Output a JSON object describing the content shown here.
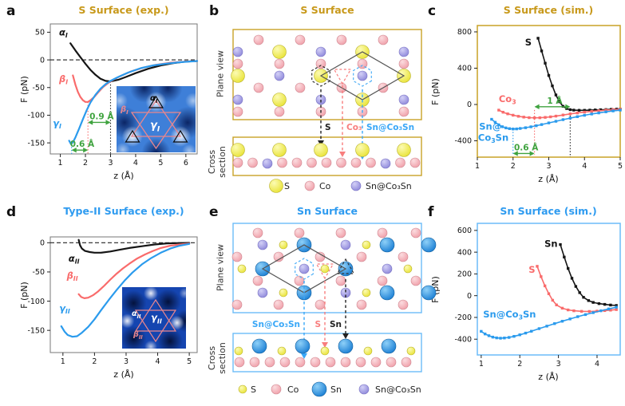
{
  "panels": {
    "a": {
      "letter": "a",
      "title": "S Surface (exp.)"
    },
    "b": {
      "letter": "b",
      "title": "S Surface",
      "plane_label": "Plane view",
      "cross_label": "Cross section",
      "callouts": [
        {
          "text": "S",
          "color": "#222222"
        },
        {
          "text": "Co₃",
          "color": "#F87E7E"
        },
        {
          "text": "Sn@Co₃Sn",
          "color": "#39A7F7"
        }
      ],
      "legend": [
        {
          "text": "S",
          "type": "S"
        },
        {
          "text": "Co",
          "type": "Co"
        },
        {
          "text": "Sn@Co₃Sn",
          "type": "V"
        }
      ]
    },
    "c": {
      "letter": "c",
      "title": "S Surface (sim.)"
    },
    "d": {
      "letter": "d",
      "title": "Type-II Surface (exp.)"
    },
    "e": {
      "letter": "e",
      "title": "Sn Surface",
      "plane_label": "Plane view",
      "cross_label": "Cross section",
      "callouts": [
        {
          "text": "Sn@Co₃Sn",
          "color": "#39A7F7"
        },
        {
          "text": "S",
          "color": "#F87E7E"
        },
        {
          "text": "Sn",
          "color": "#222222"
        }
      ],
      "legend": [
        {
          "text": "S",
          "type": "S"
        },
        {
          "text": "Co",
          "type": "Co"
        },
        {
          "text": "Sn",
          "type": "B"
        },
        {
          "text": "Sn@Co₃Sn",
          "type": "V"
        }
      ]
    },
    "f": {
      "letter": "f",
      "title": "Sn Surface (sim.)"
    }
  },
  "insets": {
    "a": {
      "alpha": "α_{I}",
      "beta": "β_{I}",
      "gamma": "γ_{I}"
    },
    "d": {
      "alpha": "α_{II}",
      "beta": "β_{II}",
      "gamma": "γ_{II}"
    }
  },
  "colors": {
    "gold": "#C8991B",
    "blue_title": "#2E9BF0",
    "green": "#3FA33F",
    "curve_black": "#151515",
    "curve_red": "#F96B6B",
    "curve_blue": "#2B9BED",
    "atom_s": "#E9E337",
    "atom_co": "#F0A0AA",
    "atom_v": "#8F89DB",
    "atom_sn": "#1B7FD4"
  },
  "chart_data": [
    {
      "id": "a",
      "type": "line",
      "title": "S Surface (exp.)",
      "xlabel": "z (Å)",
      "ylabel": "F (pN)",
      "xlim": [
        0.6,
        6.45
      ],
      "ylim": [
        -170,
        65
      ],
      "xticks": [
        1,
        2,
        3,
        4,
        5,
        6
      ],
      "yticks": [
        50,
        0,
        -50,
        -100,
        -150
      ],
      "zero_line": true,
      "frame_color": "#777777",
      "frame_width": 1,
      "series": [
        {
          "name": "alpha_I",
          "label": "α_{I}",
          "label_x": 0.95,
          "label_y": 44,
          "label_anchor": "start",
          "color": "#151515",
          "lw": 2.2,
          "marker": false,
          "x": [
            1.4,
            1.6,
            1.8,
            2.0,
            2.2,
            2.4,
            2.6,
            2.8,
            3.0,
            3.3,
            3.6,
            4.0,
            4.5,
            5.0,
            5.5,
            6.0,
            6.45
          ],
          "y": [
            30,
            17,
            5,
            -7,
            -18,
            -27,
            -34,
            -38,
            -39,
            -36,
            -31,
            -24,
            -16,
            -10,
            -6,
            -3,
            -2
          ]
        },
        {
          "name": "beta_I",
          "label": "β_{I}",
          "label_x": 0.95,
          "label_y": -40,
          "label_anchor": "start",
          "color": "#F96B6B",
          "lw": 2.2,
          "marker": false,
          "x": [
            1.5,
            1.6,
            1.7,
            1.8,
            1.9,
            2.0,
            2.1,
            2.2,
            2.35,
            2.5,
            2.7,
            2.9,
            3.1,
            3.4,
            3.8,
            4.3,
            4.8,
            5.4,
            6.0,
            6.45
          ],
          "y": [
            -28,
            -45,
            -58,
            -67,
            -73,
            -76,
            -76,
            -73,
            -67,
            -59,
            -49,
            -42,
            -36,
            -29,
            -21,
            -14,
            -9,
            -5,
            -3,
            -2
          ]
        },
        {
          "name": "gamma_I",
          "label": "γ_{I}",
          "label_x": 0.7,
          "label_y": -120,
          "label_anchor": "start",
          "color": "#2B9BED",
          "lw": 2.2,
          "marker": false,
          "x": [
            1.35,
            1.42,
            1.5,
            1.6,
            1.75,
            1.9,
            2.05,
            2.2,
            2.4,
            2.6,
            2.8,
            3.0,
            3.3,
            3.7,
            4.2,
            4.7,
            5.2,
            5.8,
            6.45
          ],
          "y": [
            -146,
            -152,
            -149,
            -140,
            -124,
            -107,
            -91,
            -77,
            -63,
            -52,
            -44,
            -38,
            -31,
            -23,
            -15,
            -10,
            -7,
            -4,
            -2
          ]
        }
      ],
      "vlines": [
        {
          "x": 1.45,
          "y1": -152,
          "y2": -170,
          "color": "#2B9BED"
        },
        {
          "x": 2.1,
          "y1": -76,
          "y2": -170,
          "color": "#F96B6B"
        },
        {
          "x": 3.0,
          "y1": -39,
          "y2": -170,
          "color": "#222222"
        }
      ],
      "arrows": [
        {
          "x1": 2.1,
          "x2": 3.0,
          "y": -113,
          "label": "0.9 Å"
        },
        {
          "x1": 1.45,
          "x2": 2.1,
          "y": -163,
          "label": "0.6 Å"
        }
      ]
    },
    {
      "id": "c",
      "type": "line",
      "title": "S Surface (sim.)",
      "xlabel": "z (Å)",
      "ylabel": "F (pN)",
      "xlim": [
        1,
        5
      ],
      "ylim": [
        -580,
        870
      ],
      "xticks": [
        1,
        2,
        3,
        4,
        5
      ],
      "yticks": [
        800,
        400,
        0,
        -400
      ],
      "zero_line": false,
      "frame_color": "#C9A227",
      "frame_width": 1.5,
      "series": [
        {
          "name": "S",
          "label": "S",
          "label_x": 2.52,
          "label_y": 650,
          "label_anchor": "end",
          "color": "#151515",
          "lw": 1.6,
          "marker": true,
          "x": [
            2.7,
            2.8,
            2.9,
            3.0,
            3.1,
            3.2,
            3.3,
            3.4,
            3.5,
            3.6,
            3.7,
            3.85,
            4.0,
            4.15,
            4.3,
            4.45,
            4.6,
            4.75,
            4.9,
            5.0
          ],
          "y": [
            730,
            590,
            455,
            320,
            205,
            105,
            30,
            -20,
            -45,
            -57,
            -62,
            -64,
            -64,
            -62,
            -60,
            -58,
            -56,
            -53,
            -51,
            -50
          ]
        },
        {
          "name": "Co3",
          "label": "Co_{3}",
          "label_x": 1.6,
          "label_y": 25,
          "label_anchor": "start",
          "color": "#F96B6B",
          "lw": 1.6,
          "marker": true,
          "x": [
            1.6,
            1.72,
            1.85,
            2.0,
            2.15,
            2.3,
            2.45,
            2.6,
            2.75,
            2.9,
            3.05,
            3.2,
            3.4,
            3.6,
            3.8,
            4.0,
            4.2,
            4.4,
            4.6,
            4.8,
            5.0
          ],
          "y": [
            -62,
            -85,
            -103,
            -118,
            -130,
            -139,
            -145,
            -147,
            -146,
            -142,
            -136,
            -128,
            -116,
            -104,
            -93,
            -84,
            -76,
            -69,
            -62,
            -56,
            -51
          ]
        },
        {
          "name": "Sn_at_Co3Sn",
          "label": "Sn@",
          "label2": "Co_{3}Sn",
          "label_x": 1.05,
          "label_y": -275,
          "label2_x": 1.02,
          "label2_y": -400,
          "label_anchor": "start",
          "color": "#2B9BED",
          "lw": 1.6,
          "marker": true,
          "x": [
            1.4,
            1.5,
            1.6,
            1.7,
            1.8,
            1.9,
            2.0,
            2.1,
            2.2,
            2.35,
            2.5,
            2.65,
            2.8,
            3.0,
            3.2,
            3.4,
            3.6,
            3.8,
            4.0,
            4.2,
            4.4,
            4.6,
            4.8,
            5.0
          ],
          "y": [
            -163,
            -196,
            -224,
            -245,
            -258,
            -266,
            -270,
            -269,
            -264,
            -256,
            -246,
            -234,
            -221,
            -203,
            -185,
            -167,
            -150,
            -134,
            -119,
            -105,
            -93,
            -81,
            -71,
            -62
          ]
        }
      ],
      "vlines": [
        {
          "x": 2.0,
          "y1": -270,
          "y2": -555,
          "color": "#2B9BED"
        },
        {
          "x": 2.6,
          "y1": -60,
          "y2": -555,
          "color": "#F96B6B"
        },
        {
          "x": 3.6,
          "y1": -57,
          "y2": -580,
          "color": "#222222"
        }
      ],
      "arrows": [
        {
          "x1": 2.6,
          "x2": 3.6,
          "y": -25,
          "label": "1 Å"
        },
        {
          "x1": 2.0,
          "x2": 2.6,
          "y": -540,
          "label": "0.6 Å"
        }
      ]
    },
    {
      "id": "d",
      "type": "line",
      "title": "Type-II Surface (exp.)",
      "xlabel": "z (Å)",
      "ylabel": "F (pN)",
      "xlim": [
        0.6,
        5.25
      ],
      "ylim": [
        -188,
        10
      ],
      "xticks": [
        1,
        2,
        3,
        4,
        5
      ],
      "yticks": [
        0,
        -50,
        -100,
        -150
      ],
      "zero_line": true,
      "frame_color": "#777777",
      "frame_width": 1,
      "series": [
        {
          "name": "alpha_II",
          "label": "α_{II}",
          "label_x": 1.35,
          "label_y": -32,
          "label_anchor": "middle",
          "color": "#151515",
          "lw": 2.2,
          "marker": false,
          "x": [
            1.5,
            1.54,
            1.6,
            1.7,
            1.85,
            2.0,
            2.2,
            2.5,
            2.8,
            3.1,
            3.5,
            3.9,
            4.3,
            4.7,
            5.0
          ],
          "y": [
            5,
            -4,
            -10,
            -14,
            -16,
            -17,
            -17,
            -15,
            -12,
            -9,
            -6,
            -3,
            -1,
            -0.5,
            -0.3
          ]
        },
        {
          "name": "beta_II",
          "label": "β_{II}",
          "label_x": 1.12,
          "label_y": -62,
          "label_anchor": "start",
          "color": "#F96B6B",
          "lw": 2.2,
          "marker": false,
          "x": [
            1.5,
            1.58,
            1.68,
            1.8,
            1.95,
            2.1,
            2.3,
            2.5,
            2.7,
            2.9,
            3.1,
            3.35,
            3.6,
            3.85,
            4.1,
            4.4,
            4.7,
            5.0
          ],
          "y": [
            -88,
            -93,
            -95,
            -94,
            -90,
            -84,
            -74,
            -63,
            -53,
            -44,
            -36,
            -27,
            -20,
            -14,
            -9,
            -5,
            -3,
            -1.5
          ]
        },
        {
          "name": "gamma_II",
          "label": "γ_{II}",
          "label_x": 0.88,
          "label_y": -118,
          "label_anchor": "start",
          "color": "#2B9BED",
          "lw": 2.2,
          "marker": false,
          "x": [
            0.95,
            1.05,
            1.15,
            1.3,
            1.45,
            1.6,
            1.8,
            2.0,
            2.2,
            2.45,
            2.7,
            2.95,
            3.2,
            3.5,
            3.8,
            4.1,
            4.4,
            4.7,
            5.0
          ],
          "y": [
            -143,
            -152,
            -158,
            -161,
            -160,
            -154,
            -144,
            -131,
            -116,
            -98,
            -81,
            -65,
            -51,
            -37,
            -26,
            -17,
            -10,
            -5,
            -2
          ]
        }
      ],
      "vlines": [],
      "arrows": []
    },
    {
      "id": "f",
      "type": "line",
      "title": "Sn Surface (sim.)",
      "xlabel": "z (Å)",
      "ylabel": "F (pN)",
      "xlim": [
        0.9,
        4.6
      ],
      "ylim": [
        -545,
        665
      ],
      "xticks": [
        1,
        2,
        3,
        4
      ],
      "yticks": [
        600,
        400,
        200,
        0,
        -200,
        -400
      ],
      "zero_line": false,
      "frame_color": "#6BBCF8",
      "frame_width": 1.5,
      "series": [
        {
          "name": "Sn",
          "label": "Sn",
          "label_x": 2.98,
          "label_y": 450,
          "label_anchor": "end",
          "color": "#151515",
          "lw": 1.6,
          "marker": true,
          "x": [
            3.05,
            3.15,
            3.25,
            3.35,
            3.45,
            3.55,
            3.65,
            3.78,
            3.9,
            4.05,
            4.2,
            4.35,
            4.5
          ],
          "y": [
            470,
            355,
            250,
            160,
            85,
            28,
            -15,
            -45,
            -62,
            -73,
            -80,
            -86,
            -90
          ]
        },
        {
          "name": "S",
          "label": "S",
          "label_x": 2.4,
          "label_y": 210,
          "label_anchor": "end",
          "color": "#F96B6B",
          "lw": 1.6,
          "marker": true,
          "x": [
            2.45,
            2.55,
            2.65,
            2.75,
            2.85,
            2.95,
            3.1,
            3.25,
            3.4,
            3.6,
            3.8,
            4.0,
            4.2,
            4.35,
            4.5
          ],
          "y": [
            270,
            175,
            90,
            18,
            -42,
            -85,
            -115,
            -131,
            -139,
            -144,
            -145,
            -142,
            -137,
            -133,
            -128
          ]
        },
        {
          "name": "Sn_at_Co3Sn",
          "label": "Sn@Co_{3}Sn",
          "label_x": 1.05,
          "label_y": -200,
          "label_anchor": "start",
          "color": "#2B9BED",
          "lw": 1.6,
          "marker": true,
          "x": [
            1.0,
            1.1,
            1.2,
            1.3,
            1.4,
            1.5,
            1.6,
            1.72,
            1.85,
            2.0,
            2.15,
            2.3,
            2.5,
            2.7,
            2.9,
            3.1,
            3.3,
            3.5,
            3.7,
            3.9,
            4.1,
            4.3,
            4.5
          ],
          "y": [
            -328,
            -352,
            -368,
            -381,
            -388,
            -391,
            -389,
            -384,
            -374,
            -360,
            -344,
            -327,
            -303,
            -280,
            -257,
            -235,
            -214,
            -193,
            -174,
            -156,
            -139,
            -122,
            -106
          ]
        }
      ],
      "vlines": [],
      "arrows": []
    }
  ]
}
